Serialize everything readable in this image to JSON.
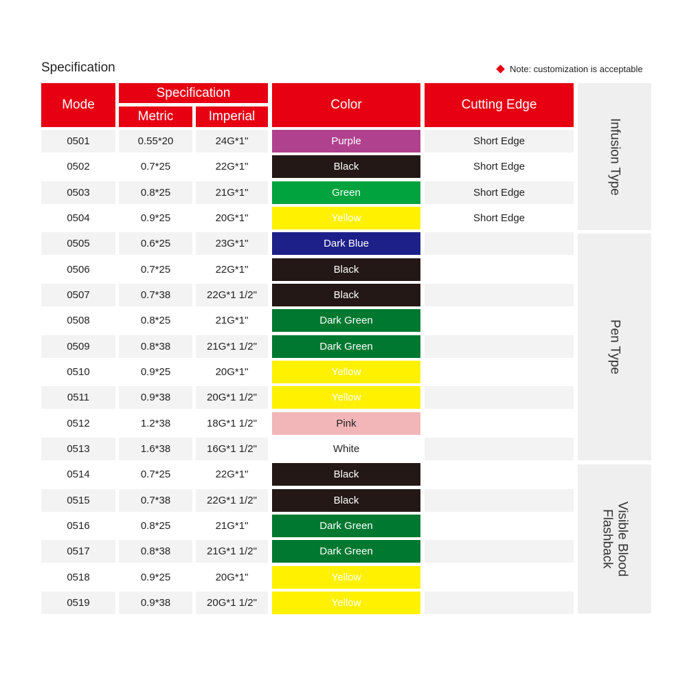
{
  "header": {
    "title": "Specification",
    "note": "Note: customization is acceptable"
  },
  "table": {
    "columns": {
      "mode": "Mode",
      "specification": "Specification",
      "metric": "Metric",
      "imperial": "Imperial",
      "color": "Color",
      "cutting_edge": "Cutting Edge"
    },
    "rows": [
      {
        "mode": "0501",
        "metric": "0.55*20",
        "imperial": "24G*1\"",
        "color": "Purple",
        "swatch": "#b0418f",
        "edge": "Short Edge"
      },
      {
        "mode": "0502",
        "metric": "0.7*25",
        "imperial": "22G*1\"",
        "color": "Black",
        "swatch": "#231815",
        "edge": "Short Edge"
      },
      {
        "mode": "0503",
        "metric": "0.8*25",
        "imperial": "21G*1\"",
        "color": "Green",
        "swatch": "#00a33e",
        "edge": "Short Edge"
      },
      {
        "mode": "0504",
        "metric": "0.9*25",
        "imperial": "20G*1\"",
        "color": "Yellow",
        "swatch": "#fff100",
        "edge": "Short Edge"
      },
      {
        "mode": "0505",
        "metric": "0.6*25",
        "imperial": "23G*1\"",
        "color": "Dark Blue",
        "swatch": "#1d2088"
      },
      {
        "mode": "0506",
        "metric": "0.7*25",
        "imperial": "22G*1\"",
        "color": "Black",
        "swatch": "#231815"
      },
      {
        "mode": "0507",
        "metric": "0.7*38",
        "imperial": "22G*1 1/2\"",
        "color": "Black",
        "swatch": "#231815"
      },
      {
        "mode": "0508",
        "metric": "0.8*25",
        "imperial": "21G*1\"",
        "color": "Dark Green",
        "swatch": "#00782f"
      },
      {
        "mode": "0509",
        "metric": "0.8*38",
        "imperial": "21G*1 1/2\"",
        "color": "Dark Green",
        "swatch": "#00782f"
      },
      {
        "mode": "0510",
        "metric": "0.9*25",
        "imperial": "20G*1\"",
        "color": "Yellow",
        "swatch": "#fff100"
      },
      {
        "mode": "0511",
        "metric": "0.9*38",
        "imperial": "20G*1 1/2\"",
        "color": "Yellow",
        "swatch": "#fff100"
      },
      {
        "mode": "0512",
        "metric": "1.2*38",
        "imperial": "18G*1 1/2\"",
        "color": "Pink",
        "swatch": "#f2b6b8"
      },
      {
        "mode": "0513",
        "metric": "1.6*38",
        "imperial": "16G*1 1/2\"",
        "color": "White",
        "swatch": "#ffffff"
      },
      {
        "mode": "0514",
        "metric": "0.7*25",
        "imperial": "22G*1\"",
        "color": "Black",
        "swatch": "#231815"
      },
      {
        "mode": "0515",
        "metric": "0.7*38",
        "imperial": "22G*1 1/2\"",
        "color": "Black",
        "swatch": "#231815"
      },
      {
        "mode": "0516",
        "metric": "0.8*25",
        "imperial": "21G*1\"",
        "color": "Dark Green",
        "swatch": "#00782f"
      },
      {
        "mode": "0517",
        "metric": "0.8*38",
        "imperial": "21G*1 1/2\"",
        "color": "Dark Green",
        "swatch": "#00782f"
      },
      {
        "mode": "0518",
        "metric": "0.9*25",
        "imperial": "20G*1\"",
        "color": "Yellow",
        "swatch": "#fff100"
      },
      {
        "mode": "0519",
        "metric": "0.9*38",
        "imperial": "20G*1 1/2\"",
        "color": "Yellow",
        "swatch": "#fff100"
      }
    ],
    "groups": [
      "Infusion Type",
      "Pen Type",
      "Visible Blood Flashback"
    ]
  }
}
